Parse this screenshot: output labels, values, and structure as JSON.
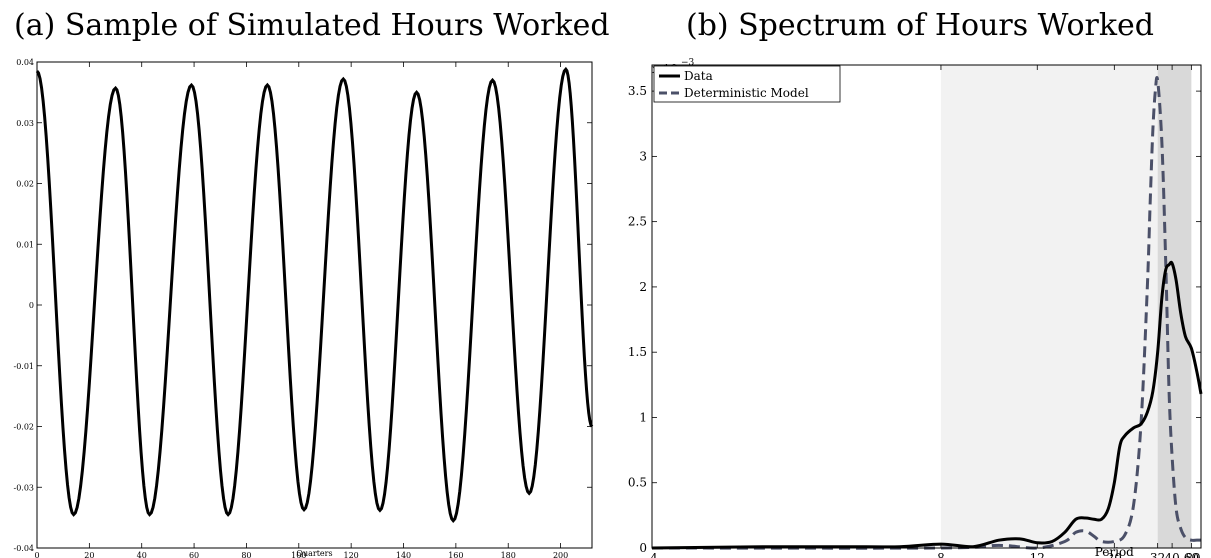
{
  "chart_data": [
    {
      "type": "line",
      "title": "(a) Sample of Simulated Hours Worked",
      "xlabel": "Quarters",
      "ylabel": "",
      "xlim": [
        0,
        212
      ],
      "ylim": [
        -0.04,
        0.04
      ],
      "x_ticks": [
        0,
        20,
        40,
        60,
        80,
        100,
        120,
        140,
        160,
        180,
        200
      ],
      "y_ticks": [
        -0.04,
        -0.03,
        -0.02,
        -0.01,
        0,
        0.01,
        0.02,
        0.03,
        0.04
      ],
      "x_tick_labels": [
        "0",
        "20",
        "40",
        "60",
        "80",
        "100",
        "120",
        "140",
        "160",
        "180",
        "200"
      ],
      "y_tick_labels": [
        "-0.04",
        "-0.03",
        "-0.02",
        "-0.01",
        "0",
        "0.01",
        "0.02",
        "0.03",
        "0.04"
      ],
      "series": [
        {
          "color": "#000000",
          "x": [
            0,
            14,
            30,
            43,
            59,
            73,
            88,
            102,
            117,
            131,
            145,
            159,
            174,
            188,
            202,
            212
          ],
          "values": [
            0.0385,
            -0.0345,
            0.0357,
            -0.0345,
            0.0362,
            -0.0345,
            0.0362,
            -0.0337,
            0.0372,
            -0.0338,
            0.035,
            -0.0355,
            0.037,
            -0.031,
            0.0388,
            -0.02
          ]
        }
      ]
    },
    {
      "type": "line",
      "title": "(b) Spectrum of Hours Worked",
      "xlabel": "Period",
      "ylabel": "",
      "y_multiplier": "x 10",
      "y_multiplier_exponent": "−3",
      "x_scale": "reciprocal (frequency-linear)",
      "xlim": [
        4,
        80
      ],
      "ylim": [
        0,
        3.7
      ],
      "x_ticks": [
        4,
        8,
        12,
        20,
        32,
        40,
        60,
        80
      ],
      "x_tick_labels": [
        "4",
        "8",
        "12",
        "20",
        "32",
        "40",
        "60",
        "80"
      ],
      "y_ticks": [
        0,
        0.5,
        1,
        1.5,
        2,
        2.5,
        3,
        3.5
      ],
      "y_tick_labels": [
        "0",
        "0.5",
        "1",
        "1.5",
        "2",
        "2.5",
        "3",
        "3.5"
      ],
      "shaded_bands": [
        {
          "from": 8,
          "to": 32,
          "color": "#f2f2f2"
        },
        {
          "from": 32,
          "to": 60,
          "color": "#d9d9d9"
        }
      ],
      "legend_position": "top-left",
      "series": [
        {
          "name": "Data",
          "color": "#000000",
          "dash": "solid",
          "x": [
            4,
            5,
            6,
            7,
            8,
            9,
            10,
            11,
            12,
            13,
            14,
            15,
            16,
            17,
            18,
            19,
            20,
            21,
            22,
            24,
            26,
            28,
            30,
            32,
            34,
            36,
            38,
            40,
            43,
            47,
            52,
            60,
            70,
            80
          ],
          "values": [
            0.0,
            0.01,
            0.01,
            0.01,
            0.03,
            0.01,
            0.06,
            0.07,
            0.04,
            0.05,
            0.12,
            0.22,
            0.23,
            0.22,
            0.22,
            0.3,
            0.5,
            0.78,
            0.86,
            0.92,
            0.95,
            1.04,
            1.2,
            1.5,
            1.92,
            2.13,
            2.17,
            2.18,
            2.05,
            1.8,
            1.62,
            1.53,
            1.35,
            1.18
          ]
        },
        {
          "name": "Deterministic Model",
          "color": "#4b5068",
          "dash": "dashed",
          "x": [
            4,
            8,
            10,
            12,
            14,
            15,
            16,
            17,
            18,
            20,
            22,
            24,
            26,
            28,
            29,
            30,
            31,
            32,
            34,
            36,
            38,
            40,
            43,
            47,
            52,
            60,
            70,
            80
          ],
          "values": [
            0.0,
            0.0,
            0.02,
            0.0,
            0.05,
            0.12,
            0.13,
            0.09,
            0.05,
            0.05,
            0.1,
            0.33,
            0.95,
            2.0,
            2.65,
            3.2,
            3.5,
            3.58,
            3.1,
            2.2,
            1.2,
            0.7,
            0.3,
            0.15,
            0.08,
            0.06,
            0.06,
            0.06
          ]
        }
      ]
    }
  ]
}
